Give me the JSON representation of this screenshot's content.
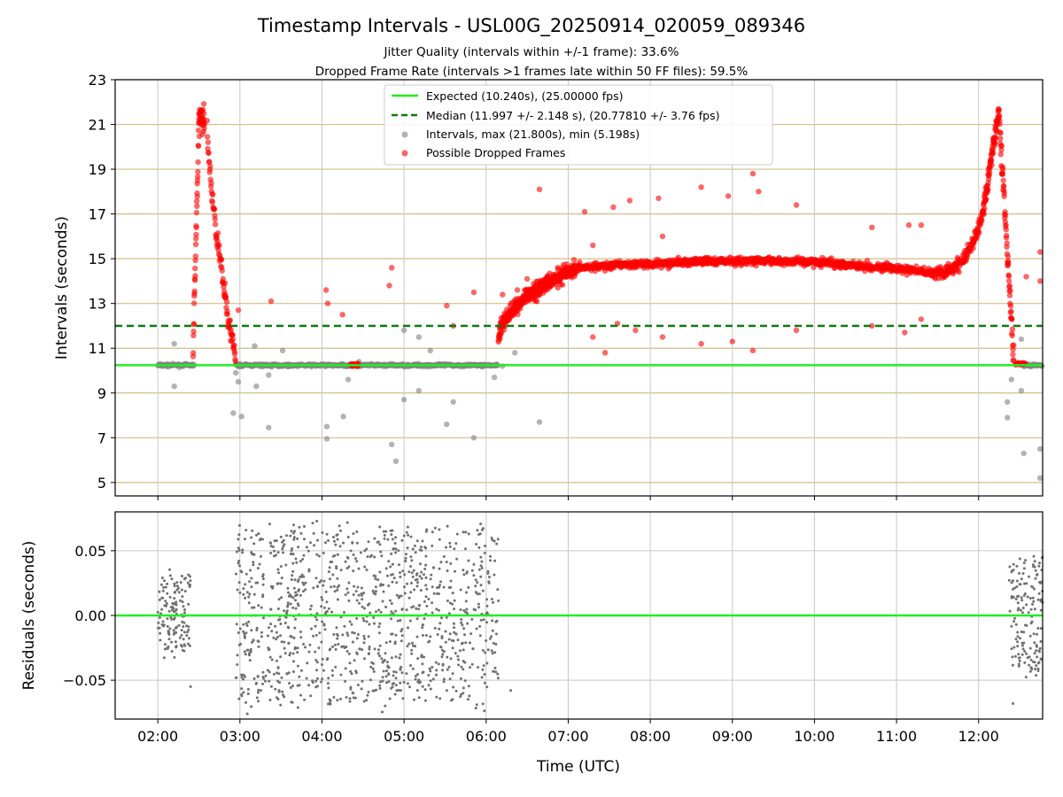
{
  "chart_data": [
    {
      "type": "scatter",
      "title": "Timestamp Intervals - USL00G_20250914_020059_089346",
      "subtitle_1": "Jitter Quality (intervals within +/-1 frame): 33.6%",
      "subtitle_2": "Dropped Frame Rate (intervals >1 frames late within 50 FF files): 59.5%",
      "ylabel": "Intervals (seconds)",
      "ylim": [
        4.4,
        23
      ],
      "xlim_hours": [
        1.48,
        12.78
      ],
      "y_ticks": [
        5,
        7,
        9,
        11,
        13,
        15,
        17,
        19,
        21,
        23
      ],
      "y_tick_labels": [
        "5",
        "7",
        "9",
        "11",
        "13",
        "15",
        "17",
        "19",
        "21",
        "23"
      ],
      "grid": true,
      "legend_position": "upper center",
      "legend": [
        "Expected (10.240s), (25.00000 fps)",
        "Median (11.997 +/- 2.148 s), (20.77810 +/- 3.76 fps)",
        "Intervals, max (21.800s), min (5.198s)",
        "Possible Dropped Frames"
      ],
      "expected_interval": 10.24,
      "median_interval": 11.997,
      "max_interval": 21.8,
      "min_interval": 5.198,
      "colors": {
        "expected": "#22ee22",
        "median": "#0b7a0b",
        "intervals": "#808080",
        "dropped": "#ff0000",
        "hgrid": "#d4be87"
      },
      "segments": [
        {
          "series": "intervals",
          "t_start": 2.0,
          "t_end": 2.45,
          "values": "10.24 ± jitter"
        },
        {
          "series": "dropped",
          "t_start": 2.45,
          "t_end": 2.62,
          "values": "rise to 21.8"
        },
        {
          "series": "dropped",
          "t_start": 2.62,
          "t_end": 2.95,
          "values": "decline to 10.4"
        },
        {
          "series": "intervals",
          "t_start": 2.95,
          "t_end": 6.15,
          "values": "10.24 ± jitter"
        },
        {
          "series": "dropped",
          "t_start": 6.15,
          "t_end": 7.1,
          "values": "11.3 rising to 14.6"
        },
        {
          "series": "dropped",
          "t_start": 7.1,
          "t_end": 11.45,
          "values": "plateau 14.2 – 15.0"
        },
        {
          "series": "dropped",
          "t_start": 11.45,
          "t_end": 12.35,
          "values": "spike to 21.7"
        },
        {
          "series": "dropped",
          "t_start": 12.35,
          "t_end": 12.55,
          "values": "decline to 10.3"
        },
        {
          "series": "intervals",
          "t_start": 12.55,
          "t_end": 12.78,
          "values": "10.24 ± jitter"
        }
      ]
    },
    {
      "type": "scatter",
      "ylabel": "Residuals (seconds)",
      "xlabel": "Time (UTC)",
      "ylim": [
        -0.08,
        0.08
      ],
      "y_ticks": [
        0.05,
        0.0,
        -0.05
      ],
      "y_tick_labels": [
        "0.05",
        "0.00",
        "−0.05"
      ],
      "x_ticks_hours": [
        2,
        3,
        4,
        5,
        6,
        7,
        8,
        9,
        10,
        11,
        12
      ],
      "x_tick_labels": [
        "02:00",
        "03:00",
        "04:00",
        "05:00",
        "06:00",
        "07:00",
        "08:00",
        "09:00",
        "10:00",
        "11:00",
        "12:00"
      ],
      "grid": true,
      "zero_line": 0.0,
      "segments": [
        {
          "t_start": 2.0,
          "t_end": 2.4,
          "values": "±0.03"
        },
        {
          "t_start": 2.95,
          "t_end": 6.15,
          "values": "±0.08"
        },
        {
          "t_start": 12.35,
          "t_end": 12.78,
          "values": "±0.05"
        }
      ]
    }
  ]
}
